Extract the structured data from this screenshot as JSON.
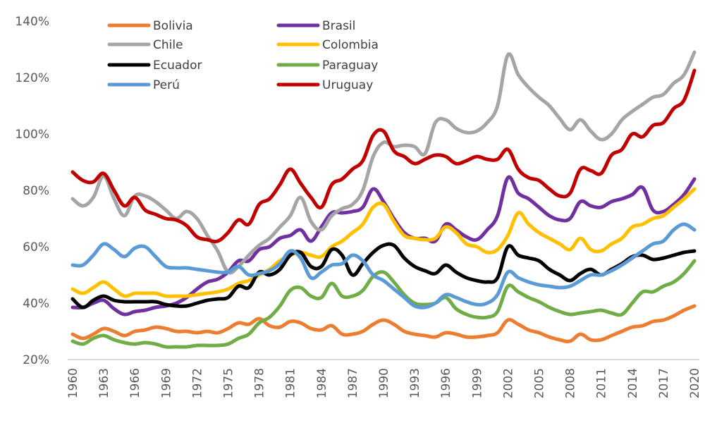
{
  "chart_data": {
    "type": "line",
    "title": "",
    "xlabel": "",
    "ylabel": "",
    "ylim": [
      20,
      140
    ],
    "xlim": [
      1960,
      2020
    ],
    "grid": false,
    "legend_position": "top-left",
    "y_ticks": [
      20,
      40,
      60,
      80,
      100,
      120,
      140
    ],
    "y_tick_labels": [
      "20%",
      "40%",
      "60%",
      "80%",
      "100%",
      "120%",
      "140%"
    ],
    "x_ticks": [
      1960,
      1963,
      1966,
      1969,
      1972,
      1975,
      1978,
      1981,
      1984,
      1987,
      1990,
      1993,
      1996,
      1999,
      2002,
      2005,
      2008,
      2011,
      2014,
      2017,
      2020
    ],
    "x_tick_labels": [
      "1960",
      "1963",
      "1966",
      "1969",
      "1972",
      "1975",
      "1978",
      "1981",
      "1984",
      "1987",
      "1990",
      "1993",
      "1996",
      "1999",
      "2002",
      "2005",
      "2008",
      "2011",
      "2014",
      "2017",
      "2020"
    ],
    "x": [
      1960,
      1961,
      1962,
      1963,
      1964,
      1965,
      1966,
      1967,
      1968,
      1969,
      1970,
      1971,
      1972,
      1973,
      1974,
      1975,
      1976,
      1977,
      1978,
      1979,
      1980,
      1981,
      1982,
      1983,
      1984,
      1985,
      1986,
      1987,
      1988,
      1989,
      1990,
      1991,
      1992,
      1993,
      1994,
      1995,
      1996,
      1997,
      1998,
      1999,
      2000,
      2001,
      2002,
      2003,
      2004,
      2005,
      2006,
      2007,
      2008,
      2009,
      2010,
      2011,
      2012,
      2013,
      2014,
      2015,
      2016,
      2017,
      2018,
      2019,
      2020
    ],
    "series": [
      {
        "name": "Bolivia",
        "color": "#ED7D31",
        "values": [
          29,
          27.5,
          29,
          31,
          30,
          28.5,
          30,
          30.5,
          31.5,
          31,
          30,
          30,
          29.5,
          30,
          29.5,
          31,
          33,
          32.5,
          34.5,
          32,
          31.5,
          33.5,
          33,
          31,
          30.5,
          32,
          29,
          29,
          30,
          32.5,
          34,
          32.5,
          30,
          29,
          28.5,
          28,
          29.5,
          29,
          28,
          28,
          28.5,
          29.5,
          34,
          32.5,
          30.5,
          29.5,
          28,
          27,
          26.5,
          29,
          27,
          27,
          28.5,
          30,
          31.5,
          32,
          33.5,
          34,
          35.5,
          37.5,
          39
        ]
      },
      {
        "name": "Brasil",
        "color": "#7030A0",
        "values": [
          38.5,
          38.5,
          40,
          41,
          38,
          36,
          37,
          37.5,
          38.5,
          39,
          40,
          42,
          45,
          47.5,
          48.5,
          51,
          55,
          55,
          59,
          60,
          63,
          64,
          66,
          62,
          67,
          72,
          72,
          72.5,
          74,
          80.5,
          76,
          70,
          65,
          63,
          63,
          62,
          68,
          66,
          63.5,
          62.5,
          66,
          71,
          84.5,
          79,
          77,
          74,
          71,
          69.5,
          70,
          76,
          74.5,
          74,
          76,
          77,
          78.5,
          81,
          73,
          72.5,
          75,
          78.5,
          84
        ]
      },
      {
        "name": "Chile",
        "color": "#A5A5A5",
        "values": [
          77,
          74.5,
          77.5,
          85,
          77,
          71,
          78,
          78,
          76,
          73,
          70,
          72.5,
          70,
          64,
          58.5,
          51,
          53,
          57,
          60.5,
          63,
          67,
          71,
          77.5,
          69,
          66,
          71,
          73.5,
          75,
          80,
          92,
          97,
          95.5,
          96,
          95.5,
          93,
          104,
          105,
          102,
          100.5,
          101,
          104,
          110,
          128,
          121,
          116.5,
          113,
          110,
          105.5,
          101.5,
          105,
          101,
          98,
          100,
          105,
          108,
          110.5,
          113,
          114,
          118,
          121,
          129
        ]
      },
      {
        "name": "Colombia",
        "color": "#FFC000",
        "values": [
          45,
          43.5,
          45.5,
          47.5,
          45,
          42.5,
          43.5,
          43.5,
          43.5,
          42.5,
          42.5,
          42.5,
          43,
          43.5,
          44,
          45,
          47,
          48,
          50,
          52,
          55,
          57,
          58,
          57,
          56.5,
          60,
          62,
          65,
          68,
          74,
          75,
          69,
          64,
          63,
          62.5,
          63,
          67,
          65,
          61,
          60,
          58,
          59,
          64,
          72,
          68,
          65,
          63,
          61,
          59,
          63,
          59,
          58.5,
          61,
          63,
          67,
          68,
          70,
          71,
          74,
          77,
          80.5
        ]
      },
      {
        "name": "Ecuador",
        "color": "#000000",
        "values": [
          41.5,
          38.5,
          41,
          42.5,
          41,
          40.5,
          40.5,
          40.5,
          40.5,
          39.5,
          39,
          39,
          40,
          41,
          41.5,
          42,
          46,
          45.5,
          51,
          50,
          52,
          57,
          58,
          53,
          53,
          59,
          57,
          50,
          54,
          58,
          60.5,
          60.5,
          56,
          53,
          51.5,
          50.5,
          53.5,
          51,
          49,
          48,
          47.5,
          49,
          60,
          57,
          56,
          55,
          52,
          50,
          48,
          50.5,
          52,
          50,
          52,
          54,
          56.5,
          57,
          55.5,
          56,
          57,
          58,
          58.5
        ]
      },
      {
        "name": "Paraguay",
        "color": "#70AD47",
        "values": [
          26.5,
          25.5,
          27.5,
          28.5,
          27,
          26,
          25.5,
          26,
          25.5,
          24.5,
          24.5,
          24.5,
          25,
          25,
          25,
          25.5,
          27.5,
          29,
          33,
          35,
          39,
          44.5,
          45.5,
          42.5,
          42,
          47,
          42.5,
          42.5,
          44.5,
          49.5,
          51,
          47.5,
          43,
          40,
          39.5,
          40,
          42,
          38,
          36,
          35,
          35,
          37,
          46,
          44,
          42,
          40.5,
          38.5,
          37,
          36,
          36.5,
          37,
          37.5,
          36.5,
          36,
          40,
          44,
          44,
          46,
          47.5,
          50.5,
          55
        ]
      },
      {
        "name": "Perú",
        "color": "#5B9BD5",
        "values": [
          53.5,
          53.5,
          57,
          61,
          59,
          56.5,
          59.5,
          60,
          56.5,
          53,
          52.5,
          52.5,
          52,
          51.5,
          51,
          51,
          53,
          50,
          50.5,
          51.5,
          54,
          58.5,
          56,
          49,
          51,
          53.5,
          54,
          57,
          55,
          50,
          48,
          45,
          42,
          39,
          38.5,
          40,
          43,
          42,
          40.5,
          39.5,
          40,
          43,
          51,
          49,
          47.5,
          46.5,
          46,
          45.5,
          46,
          48,
          50,
          50,
          51.5,
          53.5,
          56,
          58.5,
          61,
          62,
          66,
          68,
          66
        ]
      },
      {
        "name": "Uruguay",
        "color": "#C00000",
        "values": [
          86.5,
          83.5,
          83,
          86,
          80,
          74.5,
          77.5,
          73,
          71.5,
          70,
          69.5,
          67.5,
          63.5,
          62.5,
          62,
          65,
          69.5,
          68,
          75,
          77,
          82,
          87.5,
          82.5,
          77.5,
          74,
          82,
          84,
          87.5,
          90.5,
          99.5,
          101,
          94,
          92,
          89.5,
          91,
          92.5,
          92,
          89.5,
          90.5,
          92,
          91,
          91,
          94.5,
          87.5,
          84.5,
          83.5,
          80.5,
          78,
          79,
          87.5,
          87,
          86,
          92.5,
          94.5,
          100,
          99,
          103,
          104,
          109,
          112,
          122.5
        ]
      }
    ]
  }
}
